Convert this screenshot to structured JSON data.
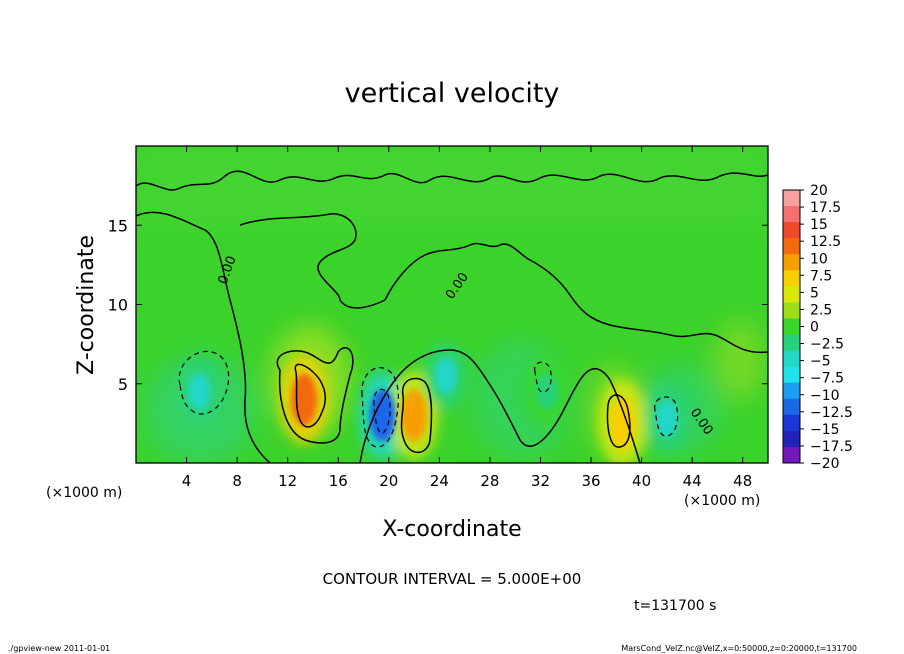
{
  "chart_data": {
    "type": "heatmap",
    "title": "vertical velocity",
    "xlabel": "X-coordinate",
    "ylabel": "Z-coordinate",
    "x_unit_left": "(×1000 m)",
    "x_unit_right": "(×1000 m)",
    "xlim": [
      0,
      50
    ],
    "ylim": [
      0,
      20
    ],
    "x_ticks": [
      "4",
      "8",
      "12",
      "16",
      "20",
      "24",
      "28",
      "32",
      "36",
      "40",
      "44",
      "48"
    ],
    "x_tick_values": [
      4,
      8,
      12,
      16,
      20,
      24,
      28,
      32,
      36,
      40,
      44,
      48
    ],
    "y_ticks": [
      "5",
      "10",
      "15"
    ],
    "y_tick_values": [
      5,
      10,
      15
    ],
    "contour_label": "0.00",
    "contour_interval": "CONTOUR INTERVAL = 5.000E+00",
    "time_label": "t=131700 s",
    "colorbar": {
      "labels": [
        "20",
        "17.5",
        "15",
        "12.5",
        "10",
        "7.5",
        "5",
        "2.5",
        "0",
        "−2.5",
        "−5",
        "−7.5",
        "−10",
        "−12.5",
        "−15",
        "−17.5",
        "−20"
      ],
      "colors": [
        "#f7a0a0",
        "#f77070",
        "#f04a2a",
        "#f26a10",
        "#f5a000",
        "#f7d000",
        "#d8e80a",
        "#9ede14",
        "#3ad72a",
        "#28d27a",
        "#22d6c8",
        "#20e2ea",
        "#1e9ef0",
        "#1c66e8",
        "#1c36d8",
        "#2222b8",
        "#7018b8"
      ]
    },
    "features": [
      {
        "x": 5,
        "z": 4.5,
        "value": -5
      },
      {
        "x": 13.3,
        "z": 4,
        "value": 12.5
      },
      {
        "x": 19.5,
        "z": 3,
        "value": -12.5
      },
      {
        "x": 22,
        "z": 3,
        "value": 10
      },
      {
        "x": 24.5,
        "z": 5.5,
        "value": -5
      },
      {
        "x": 32.5,
        "z": 4.5,
        "value": -2.5
      },
      {
        "x": 38.5,
        "z": 2.5,
        "value": 7.5
      },
      {
        "x": 42,
        "z": 2.8,
        "value": -5
      }
    ]
  },
  "footer": {
    "left": "./gpview-new   2011-01-01",
    "right": "MarsCond_VelZ.nc@VelZ,x=0:50000,z=0:20000,t=131700"
  }
}
